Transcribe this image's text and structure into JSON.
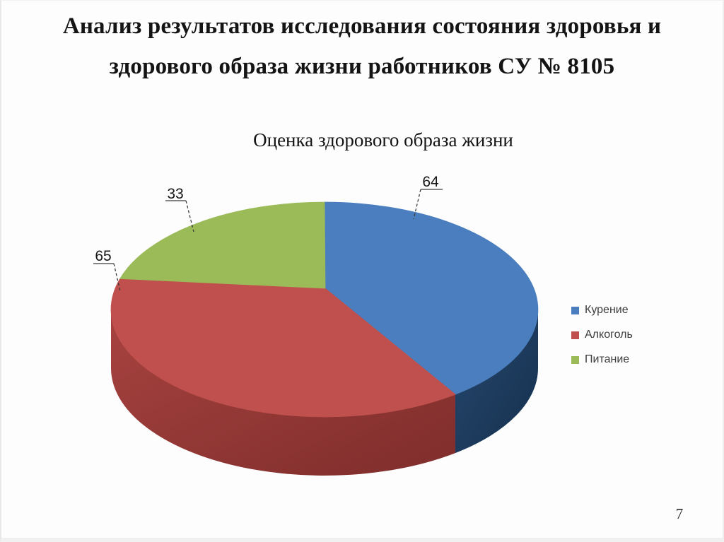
{
  "slide": {
    "title_line1": "Анализ результатов исследования состояния здоровья и",
    "title_line2": "здорового образа жизни работников СУ № 8105",
    "page_number": "7"
  },
  "chart_data": {
    "type": "pie",
    "style": "3d",
    "title": "Оценка здорового образа жизни",
    "total": 162,
    "start_angle": "12-oclock",
    "direction": "clockwise",
    "legend_position": "right",
    "data_labels": "values-outside-with-leader-lines",
    "series": [
      {
        "name": "Курение",
        "value": 64,
        "color": "#4A7EBE",
        "side_gradient": [
          "#26486E",
          "#16304E"
        ]
      },
      {
        "name": "Алкоголь",
        "value": 65,
        "color": "#C0504D",
        "side_gradient": [
          "#A84340",
          "#7E2D2B"
        ]
      },
      {
        "name": "Питание",
        "value": 33,
        "color": "#9BBB59"
      }
    ]
  }
}
